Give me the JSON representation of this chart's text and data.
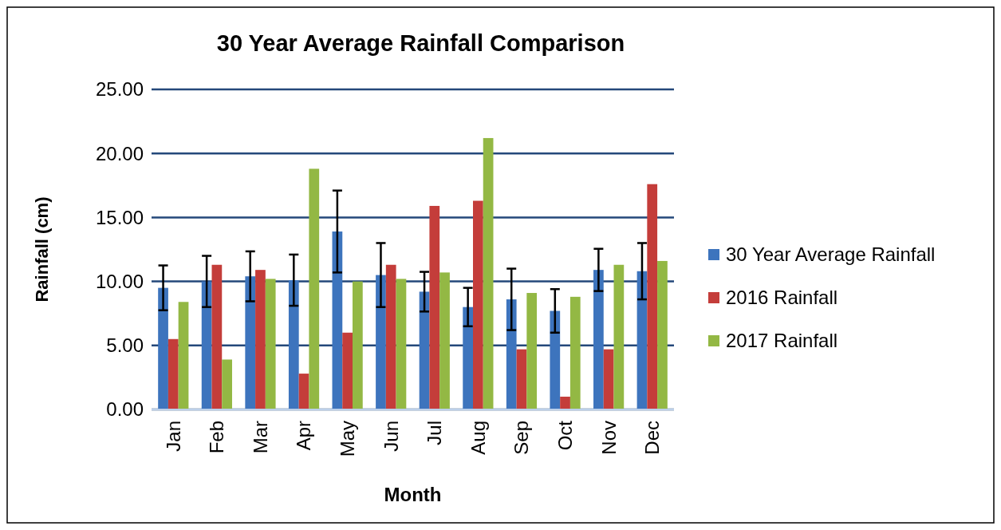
{
  "chart_data": {
    "type": "bar",
    "title": "30 Year Average Rainfall Comparison",
    "xlabel": "Month",
    "ylabel": "Rainfall (cm)",
    "categories": [
      "Jan",
      "Feb",
      "Mar",
      "Apr",
      "May",
      "Jun",
      "Jul",
      "Aug",
      "Sep",
      "Oct",
      "Nov",
      "Dec"
    ],
    "series": [
      {
        "name": "30 Year Average Rainfall",
        "color": "#3d74bd",
        "values": [
          9.5,
          10.0,
          10.4,
          10.1,
          13.9,
          10.5,
          9.2,
          8.0,
          8.6,
          7.7,
          10.9,
          10.8
        ],
        "errors": [
          1.75,
          2.0,
          1.95,
          2.0,
          3.2,
          2.5,
          1.55,
          1.5,
          2.4,
          1.7,
          1.65,
          2.2
        ]
      },
      {
        "name": "2016 Rainfall",
        "color": "#c43d3a",
        "values": [
          5.5,
          11.3,
          10.9,
          2.8,
          6.0,
          11.3,
          15.9,
          16.3,
          4.7,
          1.0,
          4.7,
          17.6
        ]
      },
      {
        "name": "2017 Rainfall",
        "color": "#93b844",
        "values": [
          8.4,
          3.9,
          10.2,
          18.8,
          10.0,
          10.2,
          10.7,
          21.2,
          9.1,
          8.8,
          11.3,
          11.6
        ]
      }
    ],
    "ylim": [
      0,
      25
    ],
    "yticks": [
      {
        "value": 0,
        "label": "0.00"
      },
      {
        "value": 5,
        "label": "5.00"
      },
      {
        "value": 10,
        "label": "10.00"
      },
      {
        "value": 15,
        "label": "15.00"
      },
      {
        "value": 20,
        "label": "20.00"
      },
      {
        "value": 25,
        "label": "25.00"
      }
    ],
    "grid": "y",
    "legend": "right"
  }
}
